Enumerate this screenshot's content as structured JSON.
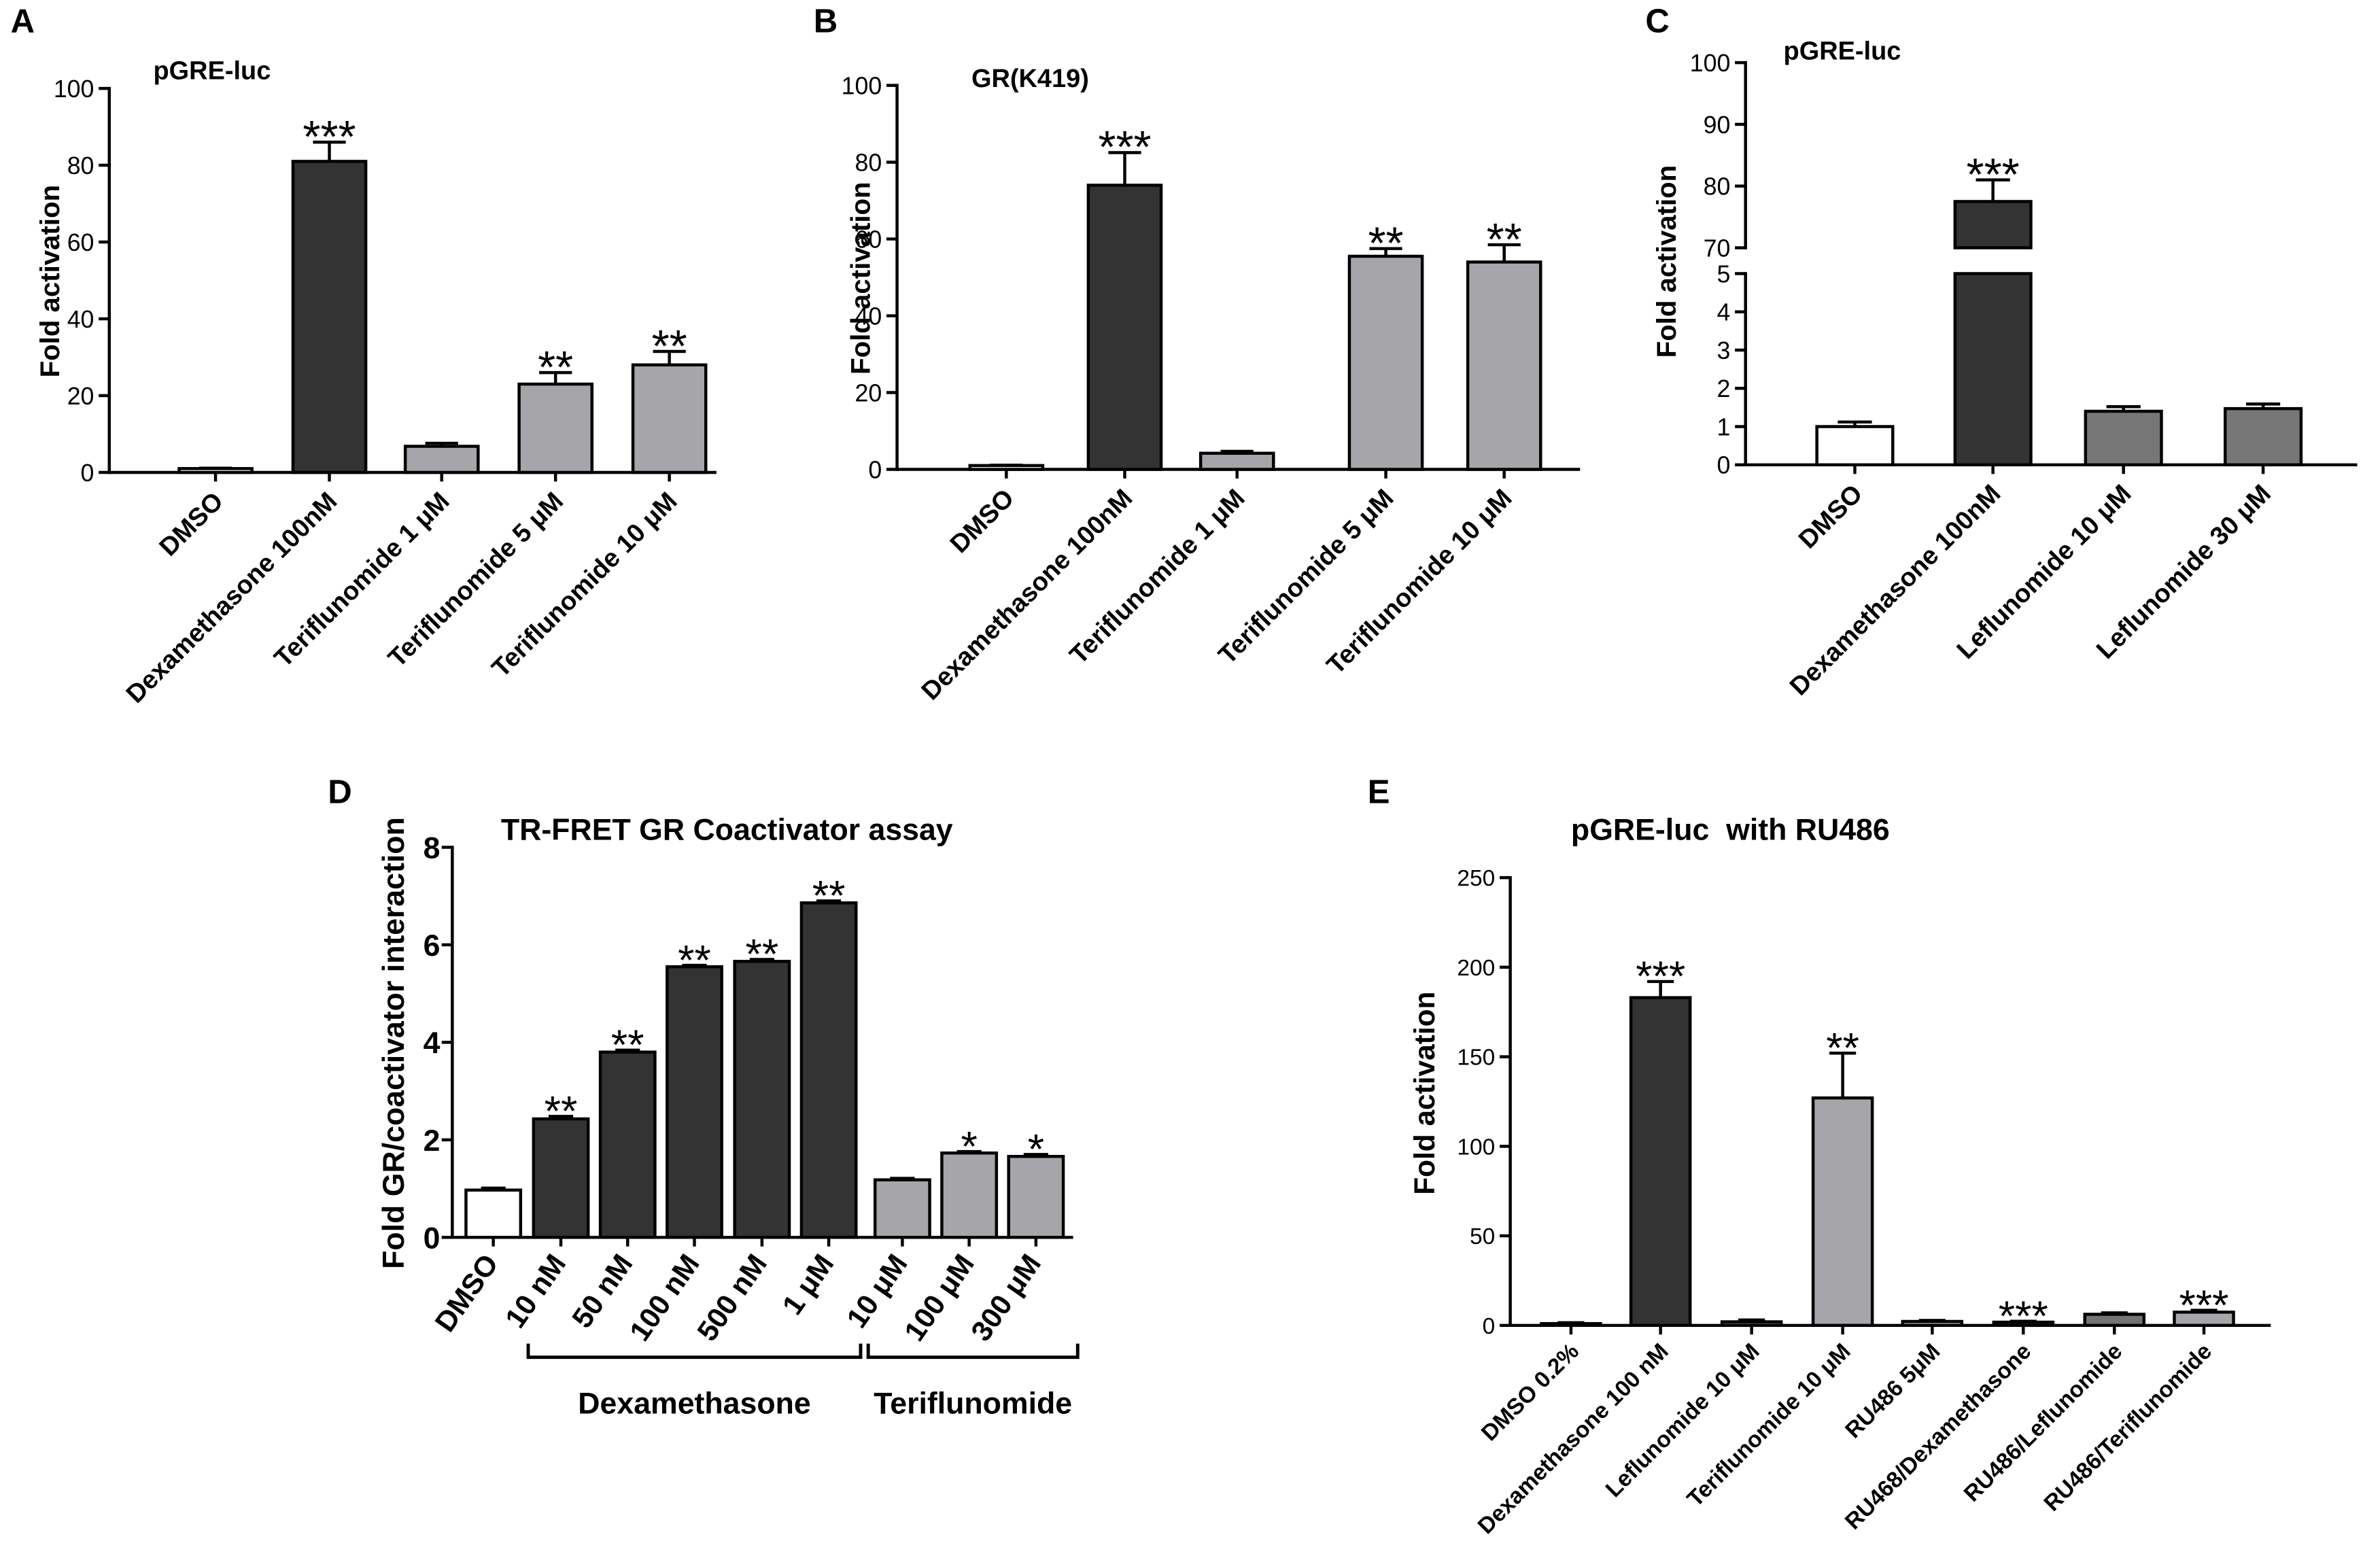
{
  "chart_data": [
    {
      "panel": "A",
      "type": "bar",
      "title": "pGRE-luc",
      "xlabel": "",
      "ylabel": "Fold activation",
      "ylim": [
        0,
        100
      ],
      "yticks": [
        0,
        20,
        40,
        60,
        80,
        100
      ],
      "categories": [
        "DMSO",
        "Dexamethasone 100nM",
        "Teriflunomide 1 μM",
        "Teriflunomide 5 μM",
        "Teriflunomide 10 μM"
      ],
      "values": [
        1.0,
        81,
        6.8,
        23,
        28
      ],
      "errors": [
        0.1,
        5,
        0.8,
        3,
        3.5
      ],
      "significance": [
        "",
        "***",
        "",
        "**",
        "**"
      ],
      "bar_colors": [
        "#ffffff",
        "#333333",
        "#a5a5aa",
        "#a5a5aa",
        "#a5a5aa"
      ]
    },
    {
      "panel": "B",
      "type": "bar",
      "title": "GR(K419)",
      "xlabel": "",
      "ylabel": "Fold activation",
      "ylim": [
        0,
        100
      ],
      "yticks": [
        0,
        20,
        40,
        60,
        80,
        100
      ],
      "categories": [
        "DMSO",
        "Dexamethasone 100nM",
        "Teriflunomide 1 μM",
        "Teriflunomide 5 μM",
        "Teriflunomide 10 μM"
      ],
      "values": [
        1.0,
        74,
        4.2,
        55.5,
        54
      ],
      "errors": [
        0.1,
        8.5,
        0.5,
        2,
        4.5
      ],
      "significance": [
        "",
        "***",
        "",
        "**",
        "**"
      ],
      "bar_colors": [
        "#ffffff",
        "#333333",
        "#a5a5aa",
        "#a5a5aa",
        "#a5a5aa"
      ]
    },
    {
      "panel": "C",
      "type": "bar",
      "title": "pGRE-luc",
      "xlabel": "",
      "ylabel": "Fold activation",
      "ylim": [
        0,
        100
      ],
      "axis_break": [
        5,
        70
      ],
      "yticks": [
        0,
        1,
        2,
        3,
        4,
        5,
        70,
        80,
        90,
        100
      ],
      "categories": [
        "DMSO",
        "Dexamethasone 100nM",
        "Leflunomide 10 μM",
        "Leflunomide 30 μM"
      ],
      "values": [
        1.0,
        77.5,
        1.4,
        1.47
      ],
      "errors": [
        0.12,
        3.5,
        0.12,
        0.12
      ],
      "significance": [
        "",
        "***",
        "",
        ""
      ],
      "bar_colors": [
        "#ffffff",
        "#333333",
        "#777777",
        "#777777"
      ]
    },
    {
      "panel": "D",
      "type": "bar",
      "title": "TR-FRET GR Coactivator assay",
      "xlabel": "",
      "ylabel": "Fold GR/coactivator interaction",
      "ylim": [
        0,
        8
      ],
      "yticks": [
        0,
        2,
        4,
        6,
        8
      ],
      "categories": [
        "DMSO",
        "10 nM",
        "50 nM",
        "100 nM",
        "500 nM",
        "1 μM",
        "10 μM",
        "100 μM",
        "300 μM"
      ],
      "values": [
        0.97,
        2.43,
        3.8,
        5.55,
        5.66,
        6.86,
        1.18,
        1.73,
        1.66
      ],
      "errors": [
        0.04,
        0.05,
        0.04,
        0.03,
        0.04,
        0.04,
        0.03,
        0.03,
        0.04
      ],
      "significance": [
        "",
        "**",
        "**",
        "**",
        "**",
        "**",
        "",
        "*",
        "*"
      ],
      "groups": [
        {
          "label": "Dexamethasone",
          "from": 1,
          "to": 5
        },
        {
          "label": "Teriflunomide",
          "from": 6,
          "to": 8
        }
      ],
      "bar_colors": [
        "#ffffff",
        "#333333",
        "#333333",
        "#333333",
        "#333333",
        "#333333",
        "#a5a5aa",
        "#a5a5aa",
        "#a5a5aa"
      ]
    },
    {
      "panel": "E",
      "type": "bar",
      "title": "pGRE-luc  with RU486",
      "xlabel": "",
      "ylabel": "Fold activation",
      "ylim": [
        0,
        250
      ],
      "yticks": [
        0,
        50,
        100,
        150,
        200,
        250
      ],
      "categories": [
        "DMSO 0.2%",
        "Dexamethasone 100 nM",
        "Leflunomide 10 μM",
        "Teriflunomide 10 μM",
        "RU486 5μM",
        "RU468/Dexamethasone",
        "RU486/Leflunomide",
        "RU486/Teriflunomide"
      ],
      "values": [
        1,
        183,
        2,
        127,
        2.2,
        1.8,
        6.2,
        7.4
      ],
      "errors": [
        0.5,
        9,
        1,
        25,
        0.6,
        0.5,
        0.8,
        1
      ],
      "significance": [
        "",
        "***",
        "",
        "**",
        "",
        "***",
        "",
        "***"
      ],
      "bar_colors": [
        "#ffffff",
        "#333333",
        "#737373",
        "#a5a5aa",
        "#a5a5aa",
        "#333333",
        "#737373",
        "#a5a5aa"
      ]
    }
  ]
}
